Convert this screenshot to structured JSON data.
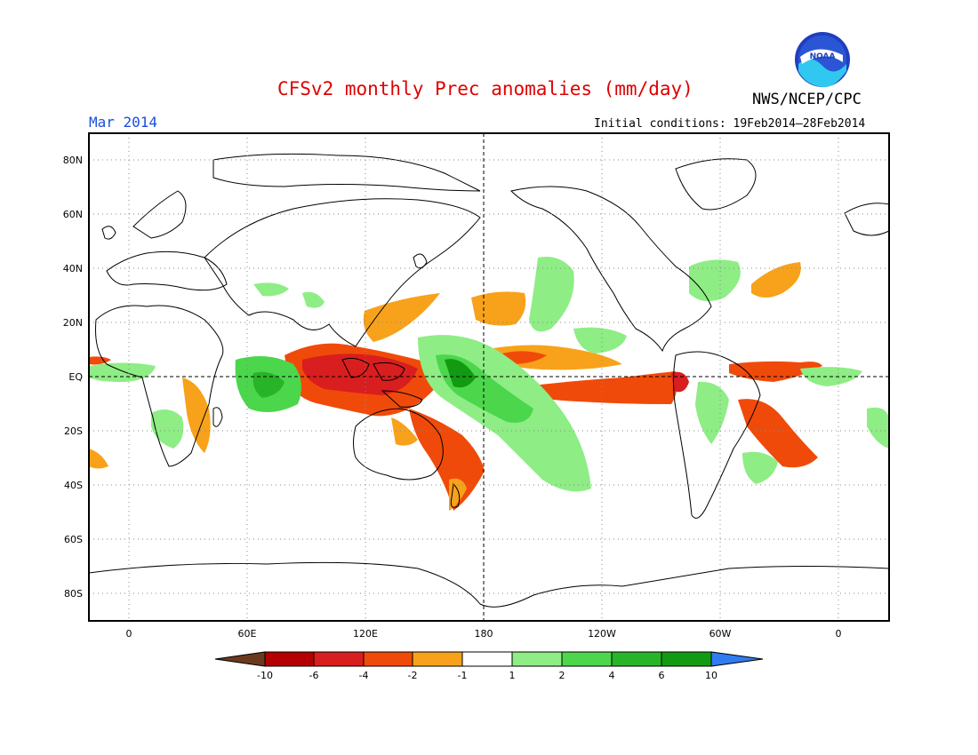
{
  "header": {
    "title": "CFSv2 monthly Prec anomalies (mm/day)",
    "agency": "NWS/NCEP/CPC",
    "logo_text": "NOAA",
    "month": "Mar 2014",
    "initial_conditions": "Initial conditions: 19Feb2014–28Feb2014"
  },
  "map": {
    "lat_labels": [
      "80N",
      "60N",
      "40N",
      "20N",
      "EQ",
      "20S",
      "40S",
      "60S",
      "80S"
    ],
    "lon_labels": [
      "0",
      "60E",
      "120E",
      "180",
      "120W",
      "60W",
      "0"
    ],
    "lat_values": [
      80,
      60,
      40,
      20,
      0,
      -20,
      -40,
      -60,
      -80
    ],
    "lon_values": [
      0,
      60,
      120,
      180,
      240,
      300,
      360
    ]
  },
  "colorbar": {
    "labels": [
      "-10",
      "-6",
      "-4",
      "-2",
      "-1",
      "1",
      "2",
      "4",
      "6",
      "10"
    ],
    "bins": [
      {
        "color": "#6b3a1e"
      },
      {
        "color": "#b40000"
      },
      {
        "color": "#d81e1e"
      },
      {
        "color": "#f04a0a"
      },
      {
        "color": "#f7a21a"
      },
      {
        "color": "#ffffff"
      },
      {
        "color": "#8eed85"
      },
      {
        "color": "#4cd64c"
      },
      {
        "color": "#28b428"
      },
      {
        "color": "#139a13"
      },
      {
        "color": "#2f7cf0"
      }
    ]
  }
}
